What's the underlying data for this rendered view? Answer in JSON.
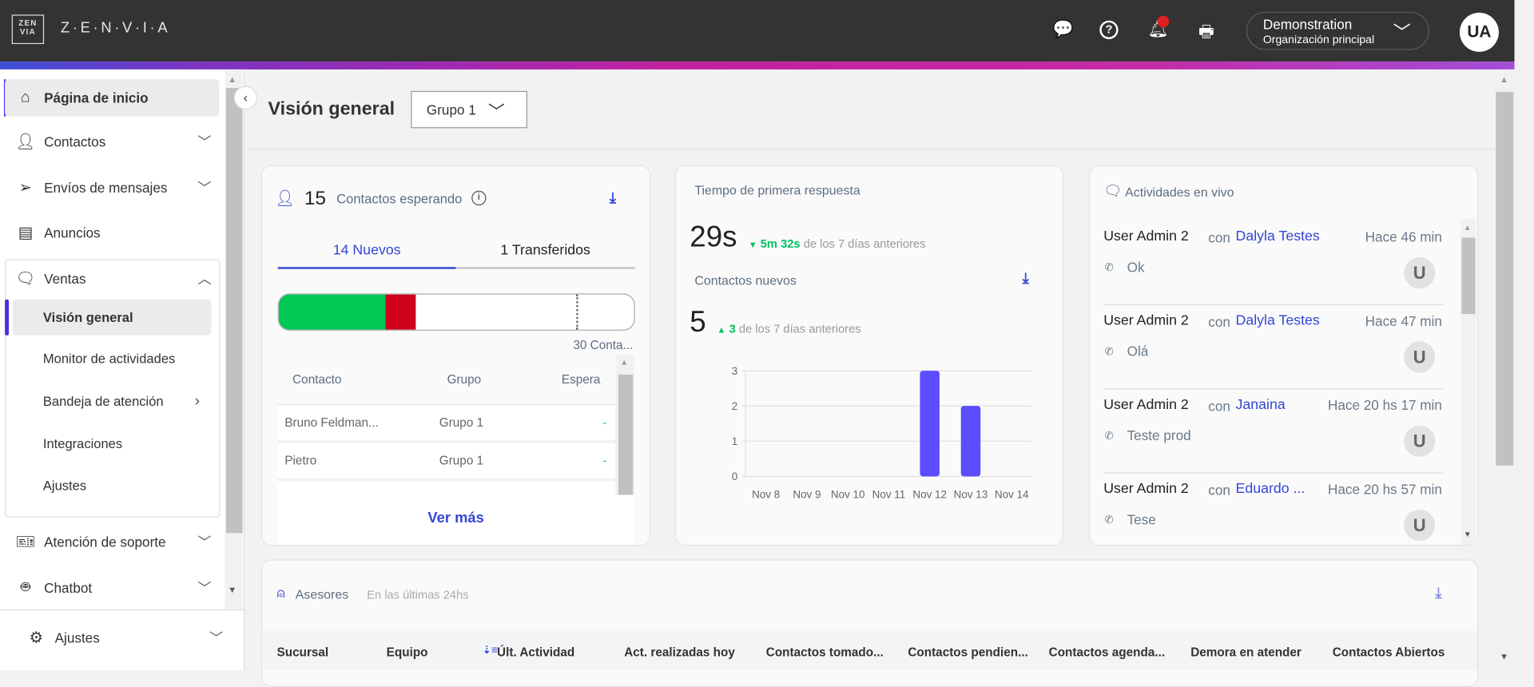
{
  "header": {
    "logo_text": "Z·E·N·V·I·A",
    "logo_mark": "ZEN VIA",
    "org_name": "Demonstration",
    "org_sub": "Organización principal",
    "avatar": "UA",
    "icons": [
      "chat-help-icon",
      "help-icon",
      "bell-icon",
      "printer-icon"
    ]
  },
  "sidebar": {
    "items": [
      {
        "label": "Página de inicio",
        "icon": "home-icon"
      },
      {
        "label": "Contactos",
        "icon": "user-icon"
      },
      {
        "label": "Envíos de mensajes",
        "icon": "send-icon"
      },
      {
        "label": "Anuncios",
        "icon": "document-icon"
      },
      {
        "label": "Ventas",
        "icon": "chat-icon"
      },
      {
        "label": "Atención de soporte",
        "icon": "ticket-icon"
      },
      {
        "label": "Chatbot",
        "icon": "robot-icon"
      }
    ],
    "sub_items": [
      "Visión general",
      "Monitor de actividades",
      "Bandeja de atención",
      "Integraciones",
      "Ajustes"
    ],
    "footer": "Ajustes"
  },
  "page": {
    "title": "Visión general",
    "group_select": "Grupo 1"
  },
  "waiting": {
    "count": "15",
    "label": "Contactos esperando",
    "tabs": [
      "14 Nuevos",
      "1 Transferidos"
    ],
    "bar_green_pct": 30,
    "bar_red_pct": 8.5,
    "limit_label": "30 Conta...",
    "columns": [
      "Contacto",
      "Grupo",
      "Espera"
    ],
    "rows": [
      [
        "Bruno Feldman...",
        "Grupo 1",
        "-"
      ],
      [
        "Pietro",
        "Grupo 1",
        "-"
      ]
    ],
    "more": "Ver más",
    "colors": {
      "green": "#00c853",
      "red": "#d0021b"
    }
  },
  "response": {
    "title": "Tiempo de primera respuesta",
    "value": "29s",
    "delta": "5m 32s",
    "delta_text": "de los 7 días anteriores",
    "new_title": "Contactos nuevos",
    "new_value": "5",
    "new_delta": "3",
    "new_delta_text": "de los 7 días anteriores"
  },
  "chart_data": {
    "type": "bar",
    "categories": [
      "Nov 8",
      "Nov 9",
      "Nov 10",
      "Nov 11",
      "Nov 12",
      "Nov 13",
      "Nov 14"
    ],
    "values": [
      0,
      0,
      0,
      0,
      3,
      2,
      0
    ],
    "ylim": [
      0,
      3
    ],
    "yticks": [
      "0",
      "1",
      "2",
      "3"
    ],
    "grid": true,
    "color": "#5b4dff"
  },
  "activities": {
    "title": "Actividades en vivo",
    "items": [
      {
        "user": "User Admin 2",
        "con": "con",
        "contact": "Dalyla Testes",
        "time": "Hace 46 min",
        "msg": "Ok",
        "avatar": "U"
      },
      {
        "user": "User Admin 2",
        "con": "con",
        "contact": "Dalyla Testes",
        "time": "Hace 47 min",
        "msg": "Olá",
        "avatar": "U"
      },
      {
        "user": "User Admin 2",
        "con": "con",
        "contact": "Janaina",
        "time": "Hace 20 hs 17 min",
        "msg": "Teste prod",
        "avatar": "U"
      },
      {
        "user": "User Admin 2",
        "con": "con",
        "contact": "Eduardo ...",
        "time": "Hace 20 hs 57 min",
        "msg": "Tese",
        "avatar": "U"
      }
    ]
  },
  "advisors": {
    "title": "Asesores",
    "subtitle": "En las últimas 24hs",
    "columns": [
      "Sucursal",
      "Equipo",
      "Últ. Actividad",
      "Act. realizadas hoy",
      "Contactos tomado...",
      "Contactos pendien...",
      "Contactos agenda...",
      "Demora en atender",
      "Contactos Abiertos"
    ]
  }
}
